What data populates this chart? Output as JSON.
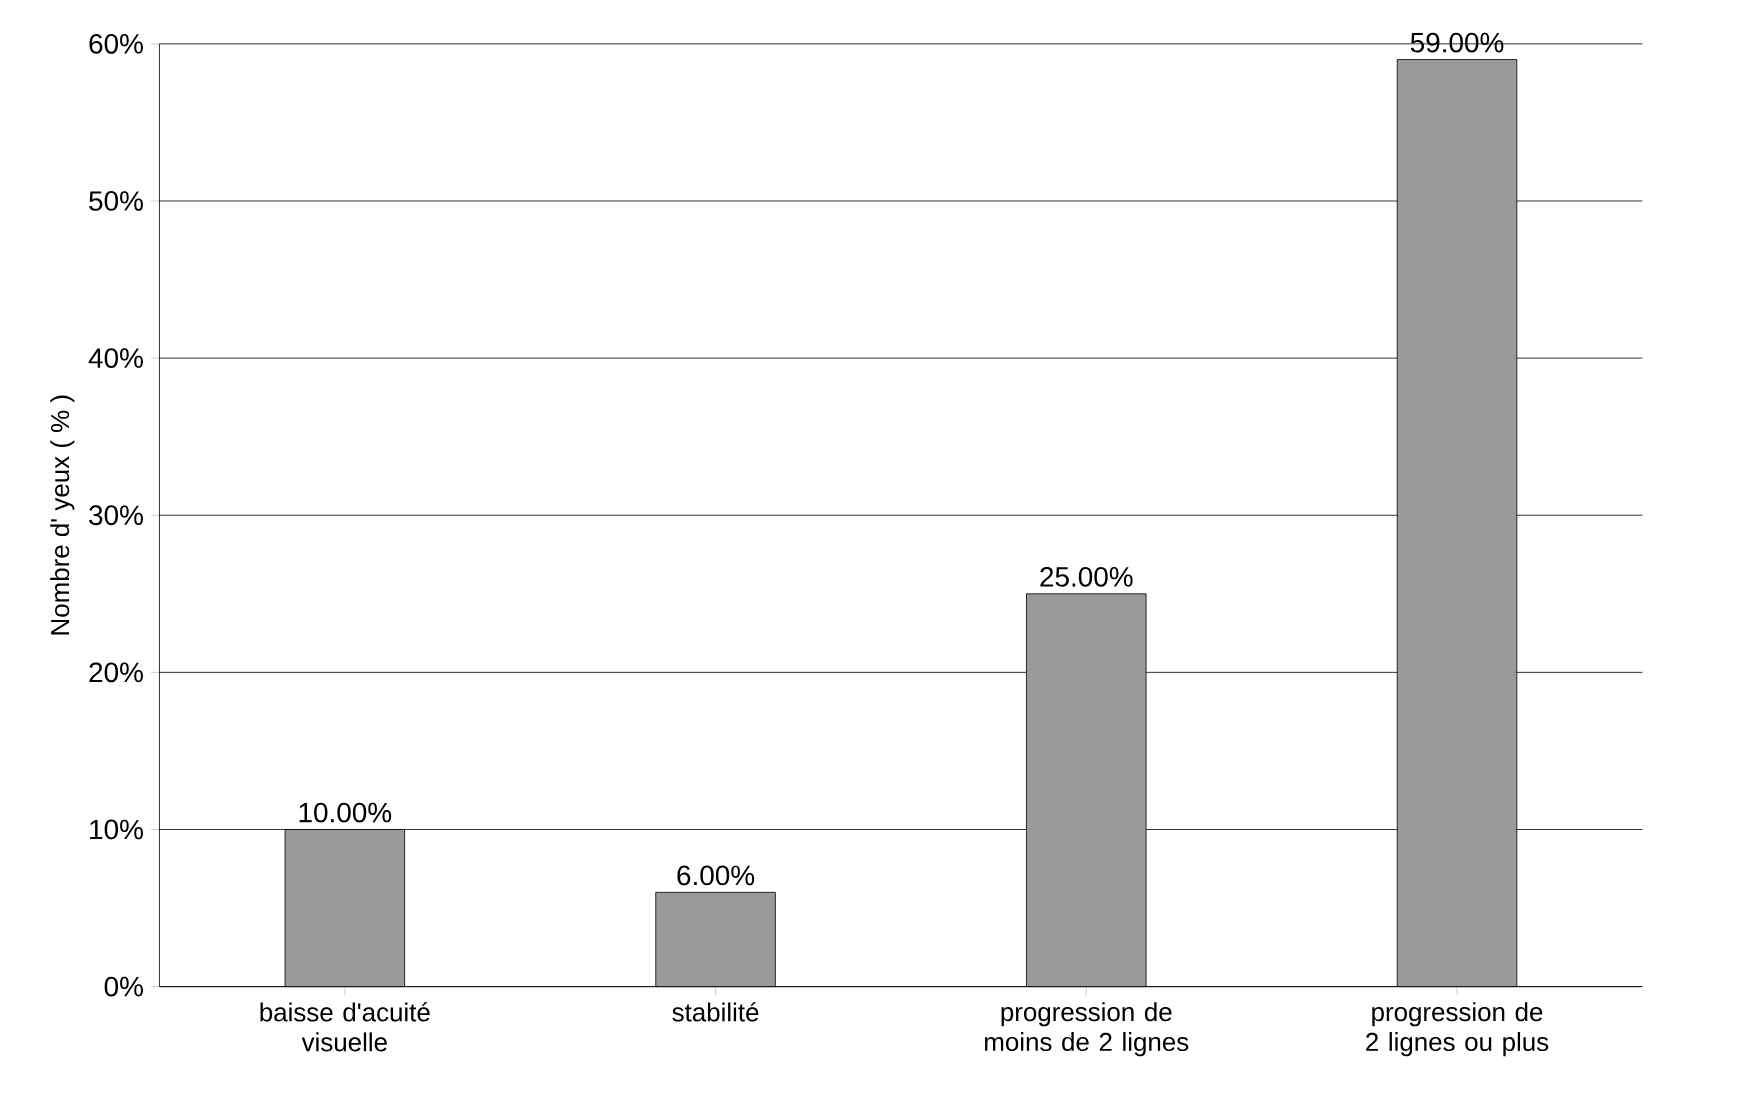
{
  "chart_data": {
    "type": "bar",
    "ylabel": "Nombre d' yeux ( % )",
    "categories": [
      "baisse d'acuité visuelle",
      "stabilité",
      "progression de moins de 2 lignes",
      "progression de 2 lignes ou plus"
    ],
    "values": [
      10,
      6,
      25,
      59
    ],
    "value_labels": [
      "10.00%",
      "6.00%",
      "25.00%",
      "59.00%"
    ],
    "color": "#9a9a9a",
    "ylim": [
      0,
      60
    ],
    "yticks": [
      {
        "value": 0,
        "label": "0%"
      },
      {
        "value": 10,
        "label": "10%"
      },
      {
        "value": 20,
        "label": "20%"
      },
      {
        "value": 30,
        "label": "30%"
      },
      {
        "value": 40,
        "label": "40%"
      },
      {
        "value": 50,
        "label": "50%"
      },
      {
        "value": 60,
        "label": "60%"
      }
    ],
    "grid": "y"
  }
}
